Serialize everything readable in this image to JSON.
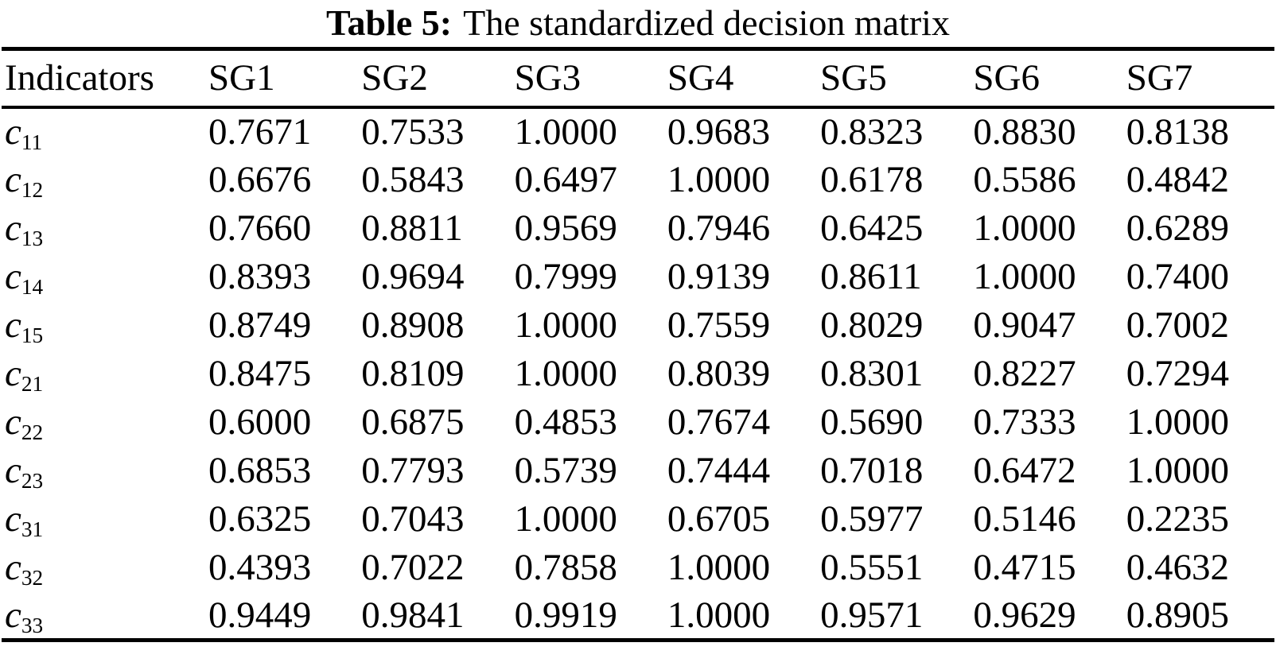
{
  "title": {
    "label": "Table 5:",
    "text": "The standardized decision matrix"
  },
  "table": {
    "indicator_header": "Indicators",
    "column_headers": [
      "SG1",
      "SG2",
      "SG3",
      "SG4",
      "SG5",
      "SG6",
      "SG7"
    ],
    "rows": [
      {
        "label": {
          "base": "c",
          "sub": "11"
        },
        "values": [
          "0.7671",
          "0.7533",
          "1.0000",
          "0.9683",
          "0.8323",
          "0.8830",
          "0.8138"
        ]
      },
      {
        "label": {
          "base": "c",
          "sub": "12"
        },
        "values": [
          "0.6676",
          "0.5843",
          "0.6497",
          "1.0000",
          "0.6178",
          "0.5586",
          "0.4842"
        ]
      },
      {
        "label": {
          "base": "c",
          "sub": "13"
        },
        "values": [
          "0.7660",
          "0.8811",
          "0.9569",
          "0.7946",
          "0.6425",
          "1.0000",
          "0.6289"
        ]
      },
      {
        "label": {
          "base": "c",
          "sub": "14"
        },
        "values": [
          "0.8393",
          "0.9694",
          "0.7999",
          "0.9139",
          "0.8611",
          "1.0000",
          "0.7400"
        ]
      },
      {
        "label": {
          "base": "c",
          "sub": "15"
        },
        "values": [
          "0.8749",
          "0.8908",
          "1.0000",
          "0.7559",
          "0.8029",
          "0.9047",
          "0.7002"
        ]
      },
      {
        "label": {
          "base": "c",
          "sub": "21"
        },
        "values": [
          "0.8475",
          "0.8109",
          "1.0000",
          "0.8039",
          "0.8301",
          "0.8227",
          "0.7294"
        ]
      },
      {
        "label": {
          "base": "c",
          "sub": "22"
        },
        "values": [
          "0.6000",
          "0.6875",
          "0.4853",
          "0.7674",
          "0.5690",
          "0.7333",
          "1.0000"
        ]
      },
      {
        "label": {
          "base": "c",
          "sub": "23"
        },
        "values": [
          "0.6853",
          "0.7793",
          "0.5739",
          "0.7444",
          "0.7018",
          "0.6472",
          "1.0000"
        ]
      },
      {
        "label": {
          "base": "c",
          "sub": "31"
        },
        "values": [
          "0.6325",
          "0.7043",
          "1.0000",
          "0.6705",
          "0.5977",
          "0.5146",
          "0.2235"
        ]
      },
      {
        "label": {
          "base": "c",
          "sub": "32"
        },
        "values": [
          "0.4393",
          "0.7022",
          "0.7858",
          "1.0000",
          "0.5551",
          "0.4715",
          "0.4632"
        ]
      },
      {
        "label": {
          "base": "c",
          "sub": "33"
        },
        "values": [
          "0.9449",
          "0.9841",
          "0.9919",
          "1.0000",
          "0.9571",
          "0.9629",
          "0.8905"
        ]
      }
    ]
  },
  "chart_data": {
    "type": "table",
    "columns": [
      "Indicators",
      "SG1",
      "SG2",
      "SG3",
      "SG4",
      "SG5",
      "SG6",
      "SG7"
    ],
    "rows": [
      [
        "c11",
        0.7671,
        0.7533,
        1.0,
        0.9683,
        0.8323,
        0.883,
        0.8138
      ],
      [
        "c12",
        0.6676,
        0.5843,
        0.6497,
        1.0,
        0.6178,
        0.5586,
        0.4842
      ],
      [
        "c13",
        0.766,
        0.8811,
        0.9569,
        0.7946,
        0.6425,
        1.0,
        0.6289
      ],
      [
        "c14",
        0.8393,
        0.9694,
        0.7999,
        0.9139,
        0.8611,
        1.0,
        0.74
      ],
      [
        "c15",
        0.8749,
        0.8908,
        1.0,
        0.7559,
        0.8029,
        0.9047,
        0.7002
      ],
      [
        "c21",
        0.8475,
        0.8109,
        1.0,
        0.8039,
        0.8301,
        0.8227,
        0.7294
      ],
      [
        "c22",
        0.6,
        0.6875,
        0.4853,
        0.7674,
        0.569,
        0.7333,
        1.0
      ],
      [
        "c23",
        0.6853,
        0.7793,
        0.5739,
        0.7444,
        0.7018,
        0.6472,
        1.0
      ],
      [
        "c31",
        0.6325,
        0.7043,
        1.0,
        0.6705,
        0.5977,
        0.5146,
        0.2235
      ],
      [
        "c32",
        0.4393,
        0.7022,
        0.7858,
        1.0,
        0.5551,
        0.4715,
        0.4632
      ],
      [
        "c33",
        0.9449,
        0.9841,
        0.9919,
        1.0,
        0.9571,
        0.9629,
        0.8905
      ]
    ],
    "title": "Table 5: The standardized decision matrix"
  },
  "colors": {
    "text": "#000000",
    "background": "#ffffff"
  }
}
